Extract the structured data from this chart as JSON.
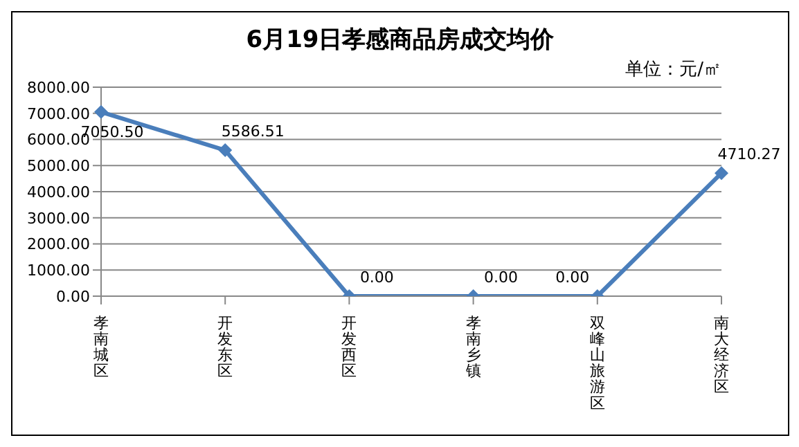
{
  "chart_data": {
    "type": "line",
    "title": "6月19日孝感商品房成交均价",
    "annotations": [
      "单位：元/㎡"
    ],
    "categories": [
      "孝南城区",
      "开发东区",
      "开发西区",
      "孝南乡镇",
      "双峰山旅游区",
      "南大经济区"
    ],
    "series": [
      {
        "color": "#4a7ebb",
        "values": [
          7050.5,
          5586.51,
          0,
          0,
          0,
          4710.27
        ],
        "value_labels": [
          "7050.50",
          "5586.51",
          "0.00",
          "0.00",
          "0.00",
          "4710.27"
        ]
      }
    ],
    "ylim": [
      0,
      8000
    ],
    "yticks": [
      {
        "value": 0,
        "label": "0.00"
      },
      {
        "value": 1000,
        "label": "1000.00"
      },
      {
        "value": 2000,
        "label": "2000.00"
      },
      {
        "value": 3000,
        "label": "3000.00"
      },
      {
        "value": 4000,
        "label": "4000.00"
      },
      {
        "value": 5000,
        "label": "5000.00"
      },
      {
        "value": 6000,
        "label": "6000.00"
      },
      {
        "value": 7000,
        "label": "7000.00"
      },
      {
        "value": 8000,
        "label": "8000.00"
      }
    ],
    "grid": "y",
    "marker": "diamond",
    "line_style": "solid",
    "legend": false
  }
}
